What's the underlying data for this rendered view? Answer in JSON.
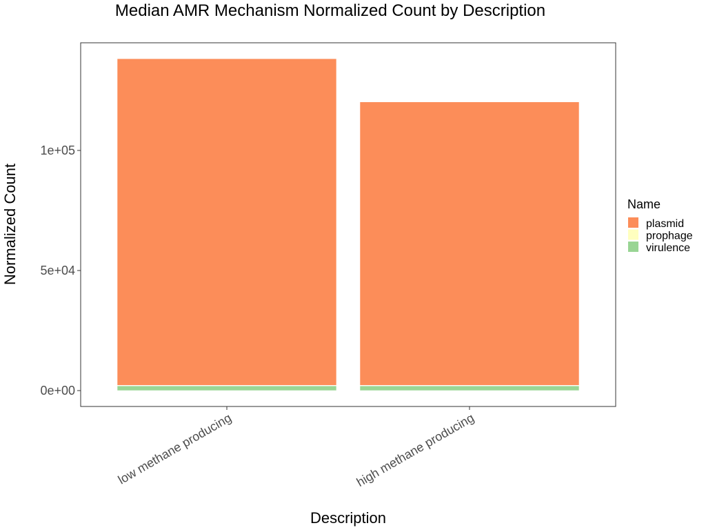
{
  "chart_data": {
    "type": "bar",
    "stacked": true,
    "title": "Median AMR Mechanism Normalized Count by Description",
    "xlabel": "Description",
    "ylabel": "Normalized Count",
    "categories": [
      "low methane producing",
      "high methane producing"
    ],
    "series": [
      {
        "name": "plasmid",
        "color": "#FC8D59",
        "values": [
          136000,
          118000
        ]
      },
      {
        "name": "prophage",
        "color": "#FFFFBF",
        "values": [
          200,
          200
        ]
      },
      {
        "name": "virulence",
        "color": "#99D594",
        "values": [
          2000,
          2000
        ]
      }
    ],
    "stack_order_bottom_to_top": [
      "virulence",
      "prophage",
      "plasmid"
    ],
    "ylim": [
      0,
      138000
    ],
    "yticks": [
      {
        "value": 0,
        "label": "0e+00"
      },
      {
        "value": 50000,
        "label": "5e+04"
      },
      {
        "value": 100000,
        "label": "1e+05"
      }
    ],
    "legend": {
      "title": "Name",
      "position": "right"
    },
    "grid": false
  }
}
